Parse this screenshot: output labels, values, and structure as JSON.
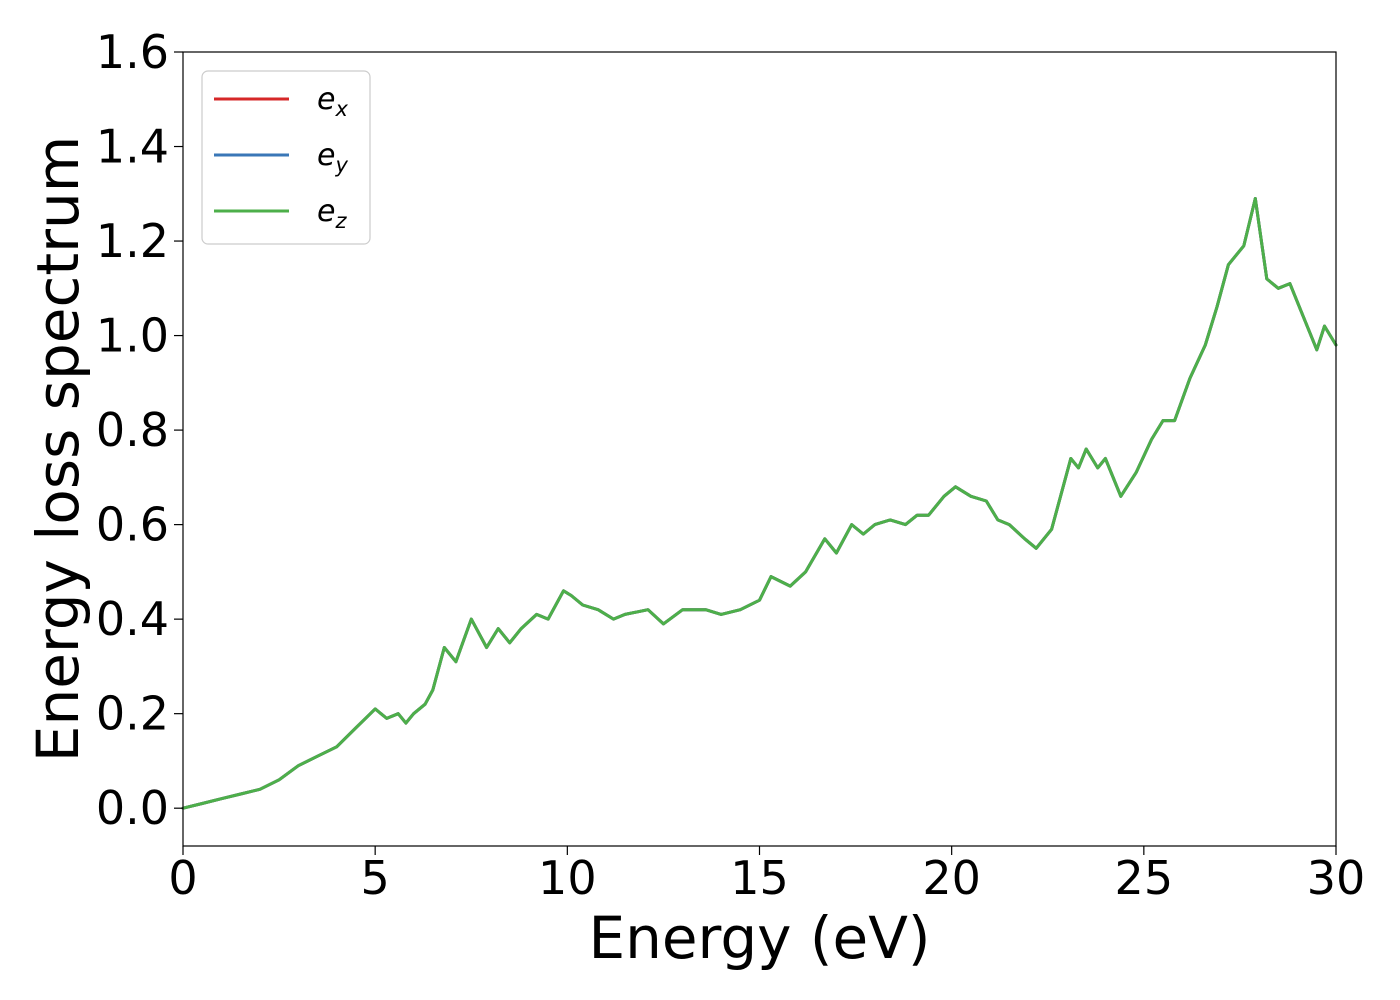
{
  "chart_data": {
    "type": "line",
    "title": "",
    "xlabel": "Energy (eV)",
    "ylabel": "Energy loss spectrum",
    "xlim": [
      0,
      30
    ],
    "ylim": [
      -0.08,
      1.6
    ],
    "xticks": [
      0,
      5,
      10,
      15,
      20,
      25,
      30
    ],
    "yticks": [
      "0.0",
      "0.2",
      "0.4",
      "0.6",
      "0.8",
      "1.0",
      "1.2",
      "1.4",
      "1.6"
    ],
    "grid": false,
    "legend_position": "top-left",
    "series": [
      {
        "name": "e",
        "subscript": "x",
        "color": "#d62728",
        "x": [
          0,
          0.5,
          1,
          1.5,
          2,
          2.5,
          3,
          3.5,
          4,
          4.5,
          5,
          5.3,
          5.6,
          5.8,
          6,
          6.3,
          6.5,
          6.8,
          7.1,
          7.5,
          7.9,
          8.2,
          8.5,
          8.8,
          9.2,
          9.5,
          9.9,
          10.1,
          10.4,
          10.8,
          11.2,
          11.5,
          12.1,
          12.5,
          13,
          13.6,
          14,
          14.5,
          15,
          15.3,
          15.8,
          16.2,
          16.7,
          17,
          17.4,
          17.7,
          18,
          18.4,
          18.8,
          19.1,
          19.4,
          19.8,
          20.1,
          20.5,
          20.9,
          21.2,
          21.5,
          21.9,
          22.2,
          22.6,
          23.1,
          23.3,
          23.5,
          23.8,
          24,
          24.4,
          24.8,
          25.2,
          25.5,
          25.8,
          26.2,
          26.6,
          26.9,
          27.2,
          27.6,
          27.9,
          28.2,
          28.5,
          28.8,
          29.1,
          29.5,
          29.7,
          30
        ],
        "y": [
          0.0,
          0.01,
          0.02,
          0.03,
          0.04,
          0.06,
          0.09,
          0.11,
          0.13,
          0.17,
          0.21,
          0.19,
          0.2,
          0.18,
          0.2,
          0.22,
          0.25,
          0.34,
          0.31,
          0.4,
          0.34,
          0.38,
          0.35,
          0.38,
          0.41,
          0.4,
          0.46,
          0.45,
          0.43,
          0.42,
          0.4,
          0.41,
          0.42,
          0.39,
          0.42,
          0.42,
          0.41,
          0.42,
          0.44,
          0.49,
          0.47,
          0.5,
          0.57,
          0.54,
          0.6,
          0.58,
          0.6,
          0.61,
          0.6,
          0.62,
          0.62,
          0.66,
          0.68,
          0.66,
          0.65,
          0.61,
          0.6,
          0.57,
          0.55,
          0.59,
          0.74,
          0.72,
          0.76,
          0.72,
          0.74,
          0.66,
          0.71,
          0.78,
          0.82,
          0.82,
          0.91,
          0.98,
          1.06,
          1.15,
          1.19,
          1.29,
          1.12,
          1.1,
          1.11,
          1.05,
          0.97,
          1.02,
          0.98
        ]
      },
      {
        "name": "e",
        "subscript": "y",
        "color": "#3a77b7",
        "x": [
          0,
          0.5,
          1,
          1.5,
          2,
          2.5,
          3,
          3.5,
          4,
          4.5,
          5,
          5.3,
          5.6,
          5.8,
          6,
          6.3,
          6.5,
          6.8,
          7.1,
          7.5,
          7.9,
          8.2,
          8.5,
          8.8,
          9.2,
          9.5,
          9.9,
          10.1,
          10.4,
          10.8,
          11.2,
          11.5,
          12.1,
          12.5,
          13,
          13.6,
          14,
          14.5,
          15,
          15.3,
          15.8,
          16.2,
          16.7,
          17,
          17.4,
          17.7,
          18,
          18.4,
          18.8,
          19.1,
          19.4,
          19.8,
          20.1,
          20.5,
          20.9,
          21.2,
          21.5,
          21.9,
          22.2,
          22.6,
          23.1,
          23.3,
          23.5,
          23.8,
          24,
          24.4,
          24.8,
          25.2,
          25.5,
          25.8,
          26.2,
          26.6,
          26.9,
          27.2,
          27.6,
          27.9,
          28.2,
          28.5,
          28.8,
          29.1,
          29.5,
          29.7,
          30
        ],
        "y": [
          0.0,
          0.01,
          0.02,
          0.03,
          0.04,
          0.06,
          0.09,
          0.11,
          0.13,
          0.17,
          0.21,
          0.19,
          0.2,
          0.18,
          0.2,
          0.22,
          0.25,
          0.34,
          0.31,
          0.4,
          0.34,
          0.38,
          0.35,
          0.38,
          0.41,
          0.4,
          0.46,
          0.45,
          0.43,
          0.42,
          0.4,
          0.41,
          0.42,
          0.39,
          0.42,
          0.42,
          0.41,
          0.42,
          0.44,
          0.49,
          0.47,
          0.5,
          0.57,
          0.54,
          0.6,
          0.58,
          0.6,
          0.61,
          0.6,
          0.62,
          0.62,
          0.66,
          0.68,
          0.66,
          0.65,
          0.61,
          0.6,
          0.57,
          0.55,
          0.59,
          0.74,
          0.72,
          0.76,
          0.72,
          0.74,
          0.66,
          0.71,
          0.78,
          0.82,
          0.82,
          0.91,
          0.98,
          1.06,
          1.15,
          1.19,
          1.29,
          1.12,
          1.1,
          1.11,
          1.05,
          0.97,
          1.02,
          0.98
        ]
      },
      {
        "name": "e",
        "subscript": "z",
        "color": "#4daf4a",
        "x": [
          0,
          0.5,
          1,
          1.5,
          2,
          2.5,
          3,
          3.5,
          4,
          4.5,
          5,
          5.3,
          5.6,
          5.8,
          6,
          6.3,
          6.5,
          6.8,
          7.1,
          7.5,
          7.9,
          8.2,
          8.5,
          8.8,
          9.2,
          9.5,
          9.9,
          10.1,
          10.4,
          10.8,
          11.2,
          11.5,
          12.1,
          12.5,
          13,
          13.6,
          14,
          14.5,
          15,
          15.3,
          15.8,
          16.2,
          16.7,
          17,
          17.4,
          17.7,
          18,
          18.4,
          18.8,
          19.1,
          19.4,
          19.8,
          20.1,
          20.5,
          20.9,
          21.2,
          21.5,
          21.9,
          22.2,
          22.6,
          23.1,
          23.3,
          23.5,
          23.8,
          24,
          24.4,
          24.8,
          25.2,
          25.5,
          25.8,
          26.2,
          26.6,
          26.9,
          27.2,
          27.6,
          27.9,
          28.2,
          28.5,
          28.8,
          29.1,
          29.5,
          29.7,
          30
        ],
        "y": [
          0.0,
          0.01,
          0.02,
          0.03,
          0.04,
          0.06,
          0.09,
          0.11,
          0.13,
          0.17,
          0.21,
          0.19,
          0.2,
          0.18,
          0.2,
          0.22,
          0.25,
          0.34,
          0.31,
          0.4,
          0.34,
          0.38,
          0.35,
          0.38,
          0.41,
          0.4,
          0.46,
          0.45,
          0.43,
          0.42,
          0.4,
          0.41,
          0.42,
          0.39,
          0.42,
          0.42,
          0.41,
          0.42,
          0.44,
          0.49,
          0.47,
          0.5,
          0.57,
          0.54,
          0.6,
          0.58,
          0.6,
          0.61,
          0.6,
          0.62,
          0.62,
          0.66,
          0.68,
          0.66,
          0.65,
          0.61,
          0.6,
          0.57,
          0.55,
          0.59,
          0.74,
          0.72,
          0.76,
          0.72,
          0.74,
          0.66,
          0.71,
          0.78,
          0.82,
          0.82,
          0.91,
          0.98,
          1.06,
          1.15,
          1.19,
          1.29,
          1.12,
          1.1,
          1.11,
          1.05,
          0.97,
          1.02,
          0.98
        ]
      }
    ]
  }
}
